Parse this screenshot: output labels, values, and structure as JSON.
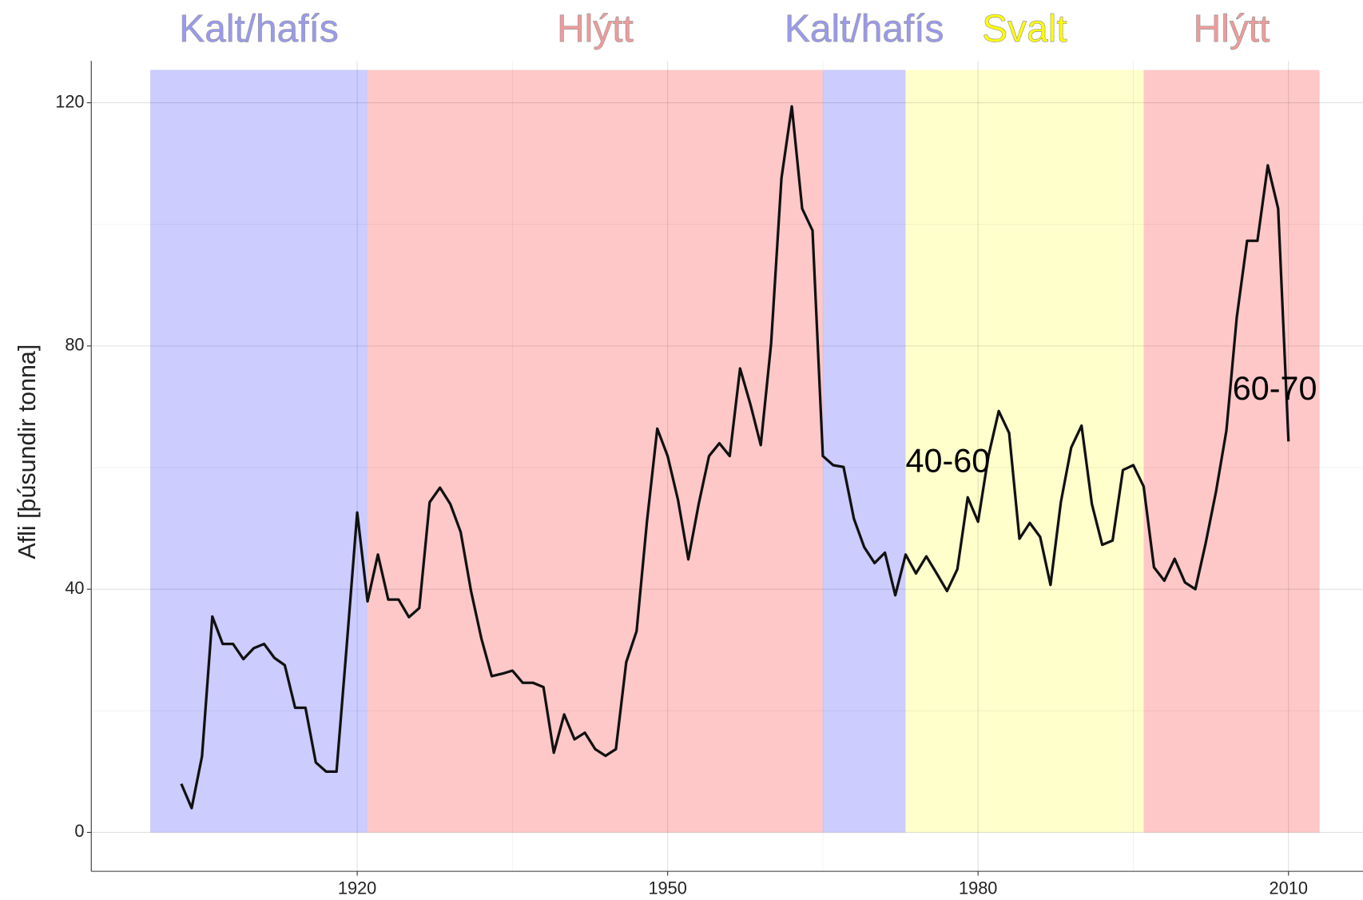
{
  "chart_data": {
    "type": "line",
    "y_label": "Afli [þúsundir tonna]",
    "x": [
      1903,
      1904,
      1905,
      1906,
      1907,
      1908,
      1909,
      1910,
      1911,
      1912,
      1913,
      1914,
      1915,
      1916,
      1917,
      1918,
      1919,
      1920,
      1921,
      1922,
      1923,
      1924,
      1925,
      1926,
      1927,
      1928,
      1929,
      1930,
      1931,
      1932,
      1933,
      1934,
      1935,
      1936,
      1937,
      1938,
      1939,
      1940,
      1941,
      1942,
      1943,
      1944,
      1945,
      1946,
      1947,
      1948,
      1949,
      1950,
      1951,
      1952,
      1953,
      1954,
      1955,
      1956,
      1957,
      1958,
      1959,
      1960,
      1961,
      1962,
      1963,
      1964,
      1965,
      1966,
      1967,
      1968,
      1969,
      1970,
      1971,
      1972,
      1973,
      1974,
      1975,
      1976,
      1977,
      1978,
      1979,
      1980,
      1981,
      1982,
      1983,
      1984,
      1985,
      1986,
      1987,
      1988,
      1989,
      1990,
      1991,
      1992,
      1993,
      1994,
      1995,
      1996,
      1997,
      1998,
      1999,
      2000,
      2001,
      2002,
      2003,
      2004,
      2005,
      2006,
      2007,
      2008,
      2009,
      2010
    ],
    "series": [
      {
        "color": "#111111",
        "values": [
          8,
          4,
          12.5,
          35.5,
          31,
          31,
          28.5,
          30.3,
          31,
          28.7,
          27.5,
          20.5,
          20.5,
          11.5,
          10,
          10,
          31,
          52.6,
          38,
          45.7,
          38.3,
          38.3,
          35.4,
          36.9,
          54.3,
          56.7,
          54,
          49.4,
          39.7,
          31.9,
          25.7,
          26.1,
          26.6,
          24.6,
          24.6,
          23.9,
          13.1,
          19.4,
          15.3,
          16.4,
          13.7,
          12.6,
          13.7,
          28,
          33.1,
          51.1,
          66.4,
          61.9,
          54.7,
          44.9,
          54,
          61.9,
          64,
          61.9,
          76.3,
          70.4,
          63.7,
          80.4,
          107.6,
          119.4,
          102.6,
          99,
          61.9,
          60.4,
          60.1,
          51.6,
          46.9,
          44.3,
          46,
          39,
          45.7,
          42.6,
          45.4,
          42.6,
          39.7,
          43.3,
          55.1,
          51.1,
          61.9,
          69.3,
          65.7,
          48.3,
          50.9,
          48.6,
          40.7,
          54.3,
          63.3,
          66.9,
          54,
          47.3,
          48,
          59.6,
          60.4,
          56.9,
          43.6,
          41.4,
          45,
          41.1,
          40,
          47.6,
          56.1,
          66.1,
          84.7,
          97.3,
          97.3,
          109.7,
          102.6,
          64.3
        ]
      }
    ],
    "bands": [
      {
        "label": "Kalt/hafís",
        "start": 1900,
        "end": 1921,
        "color": "#ccccff",
        "label_color": "#9999ee"
      },
      {
        "label": "Hlýtt",
        "start": 1921,
        "end": 1965,
        "color": "#ffc8c8",
        "label_color": "#f09a9a"
      },
      {
        "label": "Kalt/hafís",
        "start": 1965,
        "end": 1973,
        "color": "#ccccff",
        "label_color": "#9999ee"
      },
      {
        "label": "Svalt",
        "start": 1973,
        "end": 1996,
        "color": "#ffffcc",
        "label_color": "#ffff00"
      },
      {
        "label": "Hlýtt",
        "start": 1996,
        "end": 2013,
        "color": "#ffc8c8",
        "label_color": "#f09a9a"
      }
    ],
    "band_top": 125.4,
    "annotations": [
      {
        "text": "40-60",
        "x": 1973,
        "y": 60.7
      },
      {
        "text": "60-70",
        "x": 2004.6,
        "y": 72.6
      }
    ],
    "xlim": [
      1894.3,
      2017.2
    ],
    "ylim": [
      -6.4,
      126.9
    ],
    "xticks": [
      1920,
      1950,
      1980,
      2010
    ],
    "yticks": [
      0,
      40,
      80,
      120
    ],
    "grid": true
  }
}
